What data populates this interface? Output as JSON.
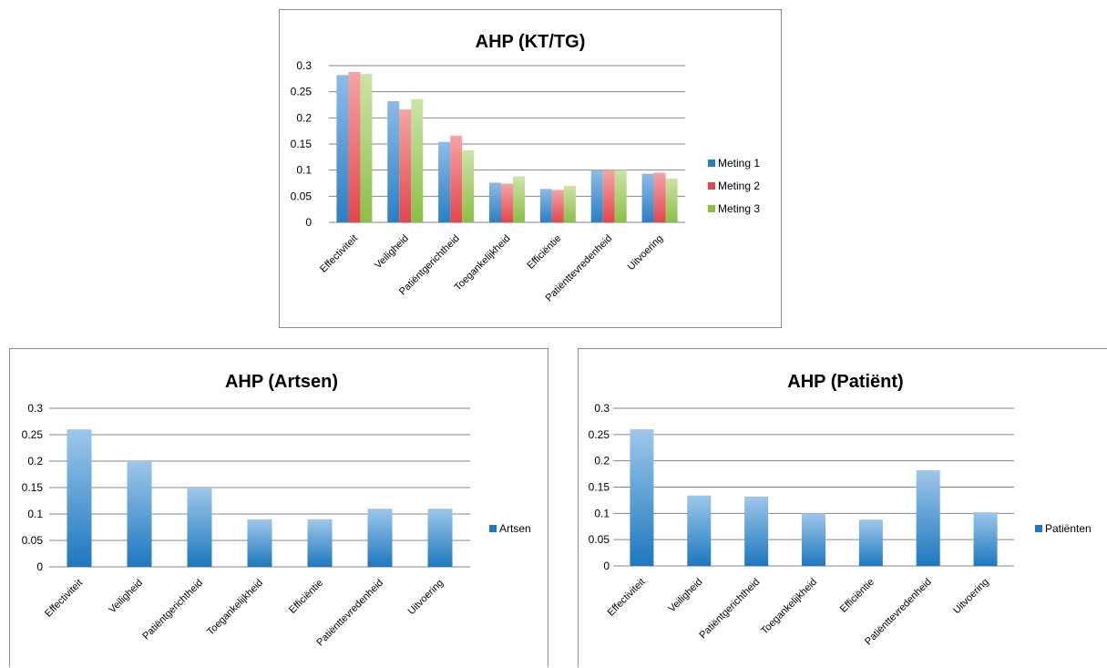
{
  "colors": {
    "blue_top": "#8dbbe6",
    "blue_bottom": "#2a7fc4",
    "red_top": "#f5a3a6",
    "red_bottom": "#e2474d",
    "green_top": "#cde3a6",
    "green_bottom": "#8cbf48",
    "single_top": "#9ec7ea",
    "single_bottom": "#1d78bf"
  },
  "chart_data": [
    {
      "type": "bar",
      "title": "AHP (KT/TG)",
      "categories": [
        "Effectiviteit",
        "Veiligheid",
        "Patiëntgerichtheid",
        "Toegankelijkheid",
        "Efficiëntie",
        "Patiënttevredenheid",
        "Uitvoering"
      ],
      "series": [
        {
          "name": "Meting 1",
          "values": [
            0.282,
            0.232,
            0.154,
            0.076,
            0.064,
            0.1,
            0.093
          ]
        },
        {
          "name": "Meting 2",
          "values": [
            0.288,
            0.216,
            0.166,
            0.074,
            0.062,
            0.1,
            0.095
          ]
        },
        {
          "name": "Meting 3",
          "values": [
            0.284,
            0.236,
            0.138,
            0.088,
            0.07,
            0.1,
            0.084
          ]
        }
      ],
      "yticks": [
        "0",
        "0.05",
        "0.1",
        "0.15",
        "0.2",
        "0.25",
        "0.3"
      ],
      "ylim": [
        0,
        0.3
      ],
      "grid": true,
      "legend": "right"
    },
    {
      "type": "bar",
      "title": "AHP (Artsen)",
      "categories": [
        "Effectiviteit",
        "Veiligheid",
        "Patiëntgerichtheid",
        "Toegankelijkheid",
        "Efficiëntie",
        "Patiënttevredenheid",
        "Uitvoering"
      ],
      "series": [
        {
          "name": "Artsen",
          "values": [
            0.26,
            0.2,
            0.15,
            0.09,
            0.09,
            0.11,
            0.11
          ]
        }
      ],
      "yticks": [
        "0",
        "0.05",
        "0.1",
        "0.15",
        "0.2",
        "0.25",
        "0.3"
      ],
      "ylim": [
        0,
        0.3
      ],
      "grid": true,
      "legend": "right"
    },
    {
      "type": "bar",
      "title": "AHP (Patiënt)",
      "categories": [
        "Effectiviteit",
        "Veiligheid",
        "Patiëntgerichtheid",
        "Toegankelijkheid",
        "Efficiëntie",
        "Patiënttevredenheid",
        "Uitvoering"
      ],
      "series": [
        {
          "name": "Patiënten",
          "values": [
            0.26,
            0.134,
            0.132,
            0.1,
            0.088,
            0.182,
            0.102
          ]
        }
      ],
      "yticks": [
        "0",
        "0.05",
        "0.1",
        "0.15",
        "0.2",
        "0.25",
        "0.3"
      ],
      "ylim": [
        0,
        0.3
      ],
      "grid": true,
      "legend": "right"
    }
  ]
}
